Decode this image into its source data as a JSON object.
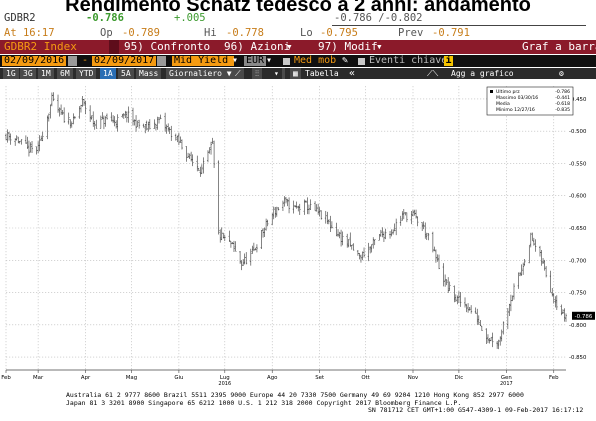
{
  "page_title": "Rendimento Schatz tedesco a 2 anni: andamento",
  "quote": {
    "ticker": "GDBR2",
    "last": "-0.786",
    "change": "+.005",
    "bid_ask": "-0.786 /-0.802",
    "time": "At 16:17",
    "open_label": "Op",
    "open": "-0.789",
    "high_label": "Hi",
    "high": "-0.778",
    "low_label": "Lo",
    "low": "-0.795",
    "prev_label": "Prev",
    "prev": "-0.791"
  },
  "menu": {
    "index_name": "GDBR2 Index",
    "items": [
      "95) Confronto",
      "96) Azioni",
      "97) Modif"
    ],
    "right_label": "Graf a barra"
  },
  "date_bar": {
    "start": "02/09/2016",
    "dash": "-",
    "end": "02/09/2017",
    "field": "Mid Yield",
    "currency": "EUR",
    "ma_label": "Med mob",
    "events_label": "Eventi chiave",
    "info_icon": "i"
  },
  "toolbar": {
    "periods": [
      "1G",
      "3G",
      "1M",
      "6M",
      "YTD",
      "1A",
      "5A",
      "Mass"
    ],
    "selected": "1A",
    "frequency": "Giornaliero ▼",
    "chart_type": "Tabella",
    "collapse": "«",
    "add_to_chart": "Agg a grafico"
  },
  "legend": {
    "items": [
      {
        "label": "Ultimo prz",
        "value": "-0.786"
      },
      {
        "label": "Massimo 03/30/16",
        "value": "-0.441"
      },
      {
        "label": "Media",
        "value": "-0.618"
      },
      {
        "label": "Minimo 12/27/16",
        "value": "-0.835"
      }
    ]
  },
  "chart_data": {
    "type": "bar",
    "subtype": "ohlc",
    "title": "",
    "xlabel": "",
    "ylabel": "",
    "ylim": [
      -0.87,
      -0.43
    ],
    "y_ticks": [
      -0.45,
      -0.5,
      -0.55,
      -0.6,
      -0.65,
      -0.7,
      -0.75,
      -0.8,
      -0.85
    ],
    "y_tick_labels": [
      "-0.450",
      "-0.500",
      "-0.550",
      "-0.600",
      "-0.650",
      "-0.700",
      "-0.750",
      "-0.800",
      "-0.850"
    ],
    "x_range": [
      "2016-02-09",
      "2017-02-09"
    ],
    "x_tick_labels": [
      "Feb",
      "Mar",
      "Apr",
      "Mag",
      "Giu",
      "Lug",
      "Ago",
      "Set",
      "Ott",
      "Nov",
      "Dic",
      "Gen",
      "Feb"
    ],
    "x_tick_dates": [
      "2016-02-09",
      "2016-03-01",
      "2016-04-01",
      "2016-05-01",
      "2016-06-01",
      "2016-07-01",
      "2016-08-01",
      "2016-09-01",
      "2016-10-01",
      "2016-11-01",
      "2016-12-01",
      "2017-01-01",
      "2017-02-01"
    ],
    "year_labels": [
      {
        "date": "2016-07-01",
        "label": "2016"
      },
      {
        "date": "2017-01-01",
        "label": "2017"
      }
    ],
    "last_value_label": "-0.786",
    "grid": true,
    "legend_position": "top-right",
    "series": [
      {
        "name": "Ultimo prz",
        "points": [
          [
            "2016-02-09",
            -0.506
          ],
          [
            "2016-02-16",
            -0.512
          ],
          [
            "2016-02-23",
            -0.528
          ],
          [
            "2016-03-01",
            -0.528
          ],
          [
            "2016-03-04",
            -0.502
          ],
          [
            "2016-03-10",
            -0.452
          ],
          [
            "2016-03-17",
            -0.478
          ],
          [
            "2016-03-24",
            -0.486
          ],
          [
            "2016-03-30",
            -0.455
          ],
          [
            "2016-04-07",
            -0.49
          ],
          [
            "2016-04-14",
            -0.482
          ],
          [
            "2016-04-21",
            -0.485
          ],
          [
            "2016-04-28",
            -0.475
          ],
          [
            "2016-05-05",
            -0.49
          ],
          [
            "2016-05-12",
            -0.495
          ],
          [
            "2016-05-19",
            -0.483
          ],
          [
            "2016-05-26",
            -0.5
          ],
          [
            "2016-06-02",
            -0.52
          ],
          [
            "2016-06-09",
            -0.545
          ],
          [
            "2016-06-16",
            -0.56
          ],
          [
            "2016-06-23",
            -0.52
          ],
          [
            "2016-06-27",
            -0.66
          ],
          [
            "2016-07-05",
            -0.675
          ],
          [
            "2016-07-12",
            -0.705
          ],
          [
            "2016-07-19",
            -0.69
          ],
          [
            "2016-07-26",
            -0.655
          ],
          [
            "2016-08-02",
            -0.625
          ],
          [
            "2016-08-09",
            -0.61
          ],
          [
            "2016-08-16",
            -0.62
          ],
          [
            "2016-08-23",
            -0.615
          ],
          [
            "2016-08-30",
            -0.625
          ],
          [
            "2016-09-06",
            -0.64
          ],
          [
            "2016-09-13",
            -0.66
          ],
          [
            "2016-09-20",
            -0.675
          ],
          [
            "2016-09-27",
            -0.695
          ],
          [
            "2016-10-04",
            -0.68
          ],
          [
            "2016-10-11",
            -0.66
          ],
          [
            "2016-10-18",
            -0.655
          ],
          [
            "2016-10-25",
            -0.63
          ],
          [
            "2016-11-01",
            -0.63
          ],
          [
            "2016-11-08",
            -0.65
          ],
          [
            "2016-11-15",
            -0.69
          ],
          [
            "2016-11-22",
            -0.735
          ],
          [
            "2016-11-29",
            -0.76
          ],
          [
            "2016-12-06",
            -0.77
          ],
          [
            "2016-12-13",
            -0.79
          ],
          [
            "2016-12-20",
            -0.82
          ],
          [
            "2016-12-27",
            -0.825
          ],
          [
            "2017-01-03",
            -0.765
          ],
          [
            "2017-01-10",
            -0.72
          ],
          [
            "2017-01-17",
            -0.665
          ],
          [
            "2017-01-24",
            -0.7
          ],
          [
            "2017-01-31",
            -0.75
          ],
          [
            "2017-02-07",
            -0.786
          ]
        ]
      }
    ]
  },
  "footer": {
    "line1": "Australia 61 2 9777 8600 Brazil 5511 2395 9000 Europe 44 20 7330 7500 Germany 49 69 9204 1210 Hong Kong 852 2977 6000",
    "line2": "Japan 81 3 3201 8900      Singapore 65 6212 1000      U.S. 1 212 318 2000            Copyright 2017 Bloomberg Finance L.P.",
    "line3": "SN 781712 CET  GMT+1:00 G547-4309-1 09-Feb-2017 16:17:12"
  },
  "colors": {
    "bars": "#333333",
    "last_price_label_bg": "#000000",
    "menu_bg": "#8b1a2a",
    "orange": "#f59b12",
    "quote_green": "#3c9a2e",
    "quote_orange": "#c77d1a"
  }
}
